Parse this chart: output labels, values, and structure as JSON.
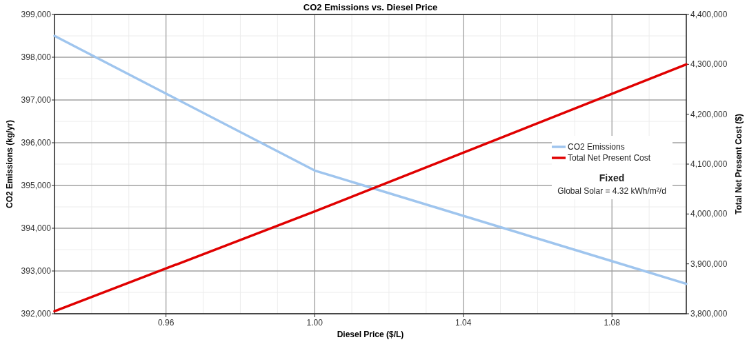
{
  "chart_data": {
    "type": "line",
    "title": "CO2 Emissions vs. Diesel Price",
    "xlabel": "Diesel Price ($/L)",
    "ylabel": "CO2 Emissions (kg/yr)",
    "y2label": "Total Net Present Cost ($)",
    "annotations": [
      "Fixed",
      "Global Solar = 4.32 kWh/m²/d"
    ],
    "x": [
      0.93,
      0.96,
      1.0,
      1.08,
      1.1
    ],
    "series": [
      {
        "name": "CO2 Emissions",
        "color": "#9fc5ee",
        "values": [
          398500,
          397150,
          395350,
          393230,
          392700
        ]
      },
      {
        "name": "Total Net Present Cost",
        "color": "#e00000",
        "axis": "y2",
        "x": [
          0.93,
          1.0,
          1.1
        ],
        "values": [
          3805000,
          4005000,
          4300000
        ]
      }
    ],
    "xlim": [
      0.93,
      1.1
    ],
    "xticks": [
      0.96,
      {
        "value": 1,
        "label": "1.00"
      },
      1.04,
      1.08
    ],
    "ylim": [
      392000,
      399000
    ],
    "yticks": [
      {
        "value": 392000,
        "label": "392,000"
      },
      {
        "value": 393000,
        "label": "393,000"
      },
      {
        "value": 394000,
        "label": "394,000"
      },
      {
        "value": 395000,
        "label": "395,000"
      },
      {
        "value": 396000,
        "label": "396,000"
      },
      {
        "value": 397000,
        "label": "397,000"
      },
      {
        "value": 398000,
        "label": "398,000"
      },
      {
        "value": 399000,
        "label": "399,000"
      }
    ],
    "y2lim": [
      3800000,
      4400000
    ],
    "y2ticks": [
      {
        "value": 3800000,
        "label": "3,800,000"
      },
      {
        "value": 3900000,
        "label": "3,900,000"
      },
      {
        "value": 4000000,
        "label": "4,000,000"
      },
      {
        "value": 4100000,
        "label": "4,100,000"
      },
      {
        "value": 4200000,
        "label": "4,200,000"
      },
      {
        "value": 4300000,
        "label": "4,300,000"
      },
      {
        "value": 4400000,
        "label": "4,400,000"
      }
    ],
    "grid": true,
    "legend": "right",
    "line_style": "solid"
  }
}
